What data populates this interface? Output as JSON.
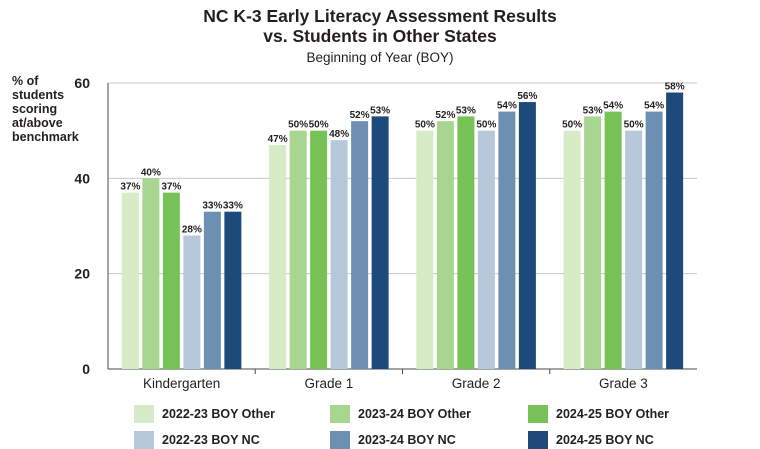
{
  "chart_data": {
    "type": "bar",
    "title": "NC K-3 Early Literacy Assessment Results",
    "title_line2": "vs. Students in Other States",
    "subtitle": "Beginning of Year (BOY)",
    "ylabel": "% of students scoring at/above benchmark",
    "ylim": [
      0,
      60
    ],
    "yticks": [
      "0",
      "20",
      "40",
      "60"
    ],
    "grid": true,
    "legend_position": "bottom",
    "categories": [
      "Kindergarten",
      "Grade 1",
      "Grade 2",
      "Grade 3"
    ],
    "series": [
      {
        "name": "2022-23 BOY Other",
        "color": "#d6ebc6",
        "values": [
          37,
          47,
          50,
          50
        ],
        "labels": [
          "37%",
          "47%",
          "50%",
          "50%"
        ]
      },
      {
        "name": "2023-24 BOY Other",
        "color": "#a8d58f",
        "values": [
          40,
          50,
          52,
          53
        ],
        "labels": [
          "40%",
          "50%",
          "52%",
          "53%"
        ]
      },
      {
        "name": "2024-25 BOY Other",
        "color": "#77c257",
        "values": [
          37,
          50,
          53,
          54
        ],
        "labels": [
          "37%",
          "50%",
          "53%",
          "54%"
        ]
      },
      {
        "name": "2022-23 BOY NC",
        "color": "#b6c8d9",
        "values": [
          28,
          48,
          50,
          50
        ],
        "labels": [
          "28%",
          "48%",
          "50%",
          "50%"
        ]
      },
      {
        "name": "2023-24 BOY NC",
        "color": "#6d8fb1",
        "values": [
          33,
          52,
          54,
          54
        ],
        "labels": [
          "33%",
          "52%",
          "54%",
          "54%"
        ]
      },
      {
        "name": "2024-25 BOY NC",
        "color": "#1d4a7a",
        "values": [
          33,
          53,
          56,
          58
        ],
        "labels": [
          "33%",
          "53%",
          "56%",
          "58%"
        ]
      }
    ]
  }
}
